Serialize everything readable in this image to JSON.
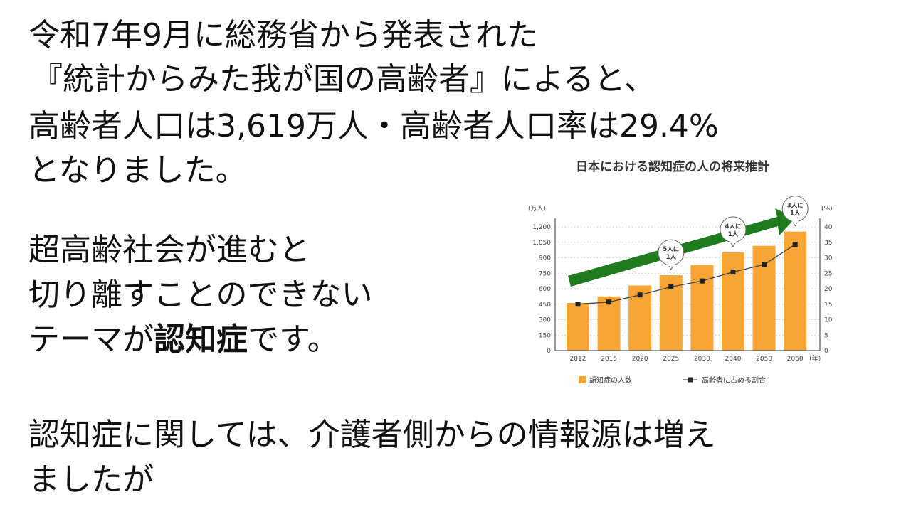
{
  "text_block_1": {
    "lines": [
      "令和7年9月に総務省から発表された",
      "『統計からみた我が国の高齢者』によると、",
      "高齢者人口は3,619万人・高齢者人口率は29.4%",
      "となりました。"
    ]
  },
  "text_block_2": {
    "line1": "超高齢社会が進むと",
    "line2": "切り離すことのできない",
    "line3_pre": "テーマが",
    "line3_bold": "認知症",
    "line3_post": "です。"
  },
  "text_block_3": {
    "lines": [
      "認知症に関しては、介護者側からの情報源は増え",
      "ましたが"
    ]
  },
  "chart_data": {
    "type": "bar",
    "title": "日本における認知症の人の将来推計",
    "categories": [
      "2012",
      "2015",
      "2020",
      "2025",
      "2030",
      "2040",
      "2050",
      "2060"
    ],
    "x_unit": "(年)",
    "series": [
      {
        "name": "認知症の人数",
        "type": "bar",
        "axis": "left",
        "values": [
          462,
          525,
          631,
          730,
          830,
          953,
          1016,
          1154
        ],
        "color": "#F7A535"
      },
      {
        "name": "高齢者に占める割合",
        "type": "line",
        "axis": "right",
        "values": [
          15.0,
          15.7,
          18.0,
          20.6,
          22.5,
          25.4,
          27.8,
          34.3
        ],
        "color": "#222222"
      }
    ],
    "y_left": {
      "unit": "(万人)",
      "ylim": [
        0,
        1200
      ],
      "ticks": [
        "0",
        "150",
        "300",
        "450",
        "600",
        "750",
        "900",
        "1,050",
        "1,200"
      ]
    },
    "y_right": {
      "unit": "(%)",
      "ylim": [
        0,
        40
      ],
      "ticks": [
        "0",
        "5",
        "10",
        "15",
        "20",
        "25",
        "30",
        "35",
        "40"
      ]
    },
    "grid": true,
    "legend_placement": "bottom",
    "callouts": [
      {
        "category": "2025",
        "line1": "5人に",
        "line2": "1人"
      },
      {
        "category": "2040",
        "line1": "4人に",
        "line2": "1人"
      },
      {
        "category": "2060",
        "line1": "3人に",
        "line2": "1人"
      }
    ],
    "arrow_color": "#1E7B1E"
  }
}
